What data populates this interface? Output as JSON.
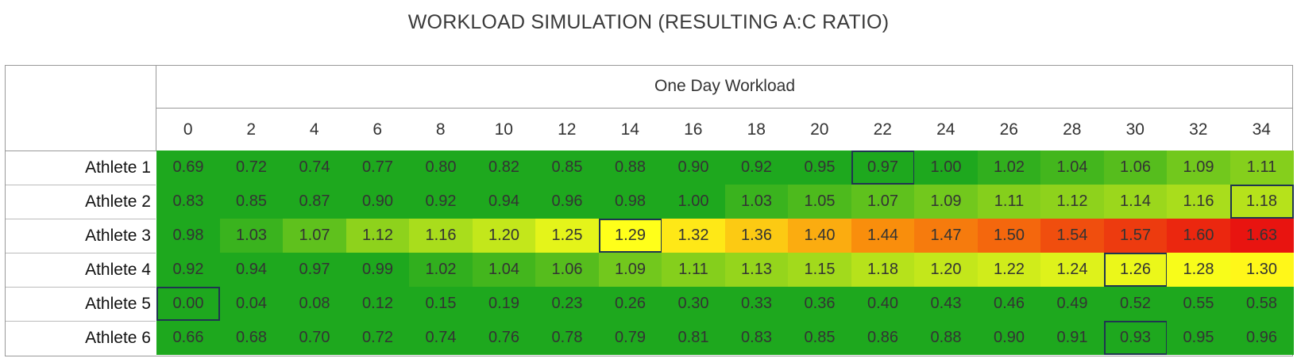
{
  "chart_data": {
    "type": "heatmap",
    "title": "WORKLOAD SIMULATION (RESULTING A:C RATIO)",
    "column_group_label": "One Day Workload",
    "x": [
      0,
      2,
      4,
      6,
      8,
      10,
      12,
      14,
      16,
      18,
      20,
      22,
      24,
      26,
      28,
      30,
      32,
      34
    ],
    "rows": [
      "Athlete 1",
      "Athlete 2",
      "Athlete 3",
      "Athlete 4",
      "Athlete 5",
      "Athlete 6"
    ],
    "values": [
      [
        "0.69",
        "0.72",
        "0.74",
        "0.77",
        "0.80",
        "0.82",
        "0.85",
        "0.88",
        "0.90",
        "0.92",
        "0.95",
        "0.97",
        "1.00",
        "1.02",
        "1.04",
        "1.06",
        "1.09",
        "1.11"
      ],
      [
        "0.83",
        "0.85",
        "0.87",
        "0.90",
        "0.92",
        "0.94",
        "0.96",
        "0.98",
        "1.00",
        "1.03",
        "1.05",
        "1.07",
        "1.09",
        "1.11",
        "1.12",
        "1.14",
        "1.16",
        "1.18"
      ],
      [
        "0.98",
        "1.03",
        "1.07",
        "1.12",
        "1.16",
        "1.20",
        "1.25",
        "1.29",
        "1.32",
        "1.36",
        "1.40",
        "1.44",
        "1.47",
        "1.50",
        "1.54",
        "1.57",
        "1.60",
        "1.63"
      ],
      [
        "0.92",
        "0.94",
        "0.97",
        "0.99",
        "1.02",
        "1.04",
        "1.06",
        "1.09",
        "1.11",
        "1.13",
        "1.15",
        "1.18",
        "1.20",
        "1.22",
        "1.24",
        "1.26",
        "1.28",
        "1.30"
      ],
      [
        "0.00",
        "0.04",
        "0.08",
        "0.12",
        "0.15",
        "0.19",
        "0.23",
        "0.26",
        "0.30",
        "0.33",
        "0.36",
        "0.40",
        "0.43",
        "0.46",
        "0.49",
        "0.52",
        "0.55",
        "0.58"
      ],
      [
        "0.66",
        "0.68",
        "0.70",
        "0.72",
        "0.74",
        "0.76",
        "0.78",
        "0.79",
        "0.81",
        "0.83",
        "0.85",
        "0.86",
        "0.88",
        "0.90",
        "0.91",
        "0.93",
        "0.95",
        "0.96"
      ]
    ],
    "highlighted_x": [
      22,
      34,
      14,
      30,
      0,
      30
    ],
    "colors": {
      "green": "#1ea81e",
      "light_green": "#8ed21c",
      "yellow": "#ffff1a",
      "orange": "#f98e0c",
      "red": "#e81410"
    }
  }
}
